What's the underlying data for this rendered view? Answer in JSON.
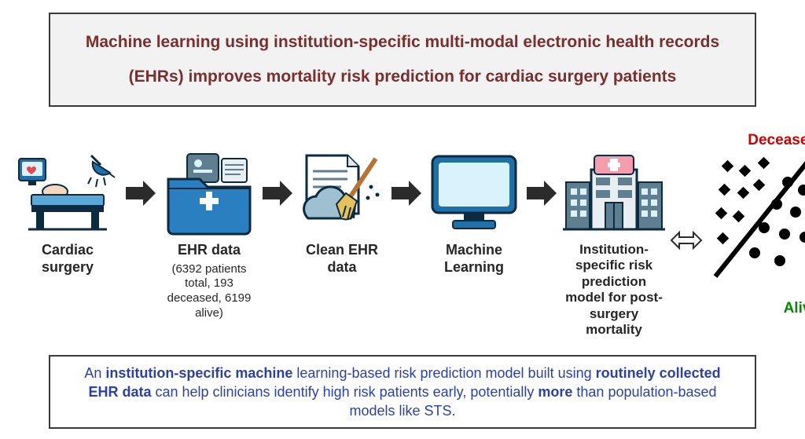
{
  "title": {
    "line1": "Machine learning using institution-specific multi-modal electronic health records",
    "line2": "(EHRs) improves mortality risk prediction for cardiac surgery patients",
    "color": "#7a2f2f",
    "bg": "#f2f2f2",
    "border": "#3a3a3a",
    "fontsize": 21
  },
  "pipeline": {
    "arrow_color": "#2b2b2b",
    "stages": [
      {
        "label": "Cardiac surgery",
        "sub": ""
      },
      {
        "label": "EHR data",
        "sub": "(6392 patients total, 193 deceased, 6199 alive)"
      },
      {
        "label": "Clean EHR data",
        "sub": ""
      },
      {
        "label": "Machine Learning",
        "sub": ""
      },
      {
        "label": "Institution-specific risk prediction model for post-surgery mortality",
        "sub": ""
      }
    ],
    "icon_colors": {
      "folder": "#2a7fc1",
      "folder_inner": "#ffffff",
      "monitor": "#1f6fa8",
      "monitor_screen": "#d9f2fb",
      "hospital_bldg": "#5f7e8f",
      "hospital_cross_bg": "#f59dae",
      "table_top": "#5aa8d6",
      "paper": "#ffffff",
      "cloud": "#9fc0d1",
      "broom_handle": "#b87333",
      "broom_head": "#e6c15a"
    }
  },
  "outcome": {
    "deceased_label": "Deceased",
    "alive_label": "Alive",
    "deceased_color": "#d10000",
    "alive_color": "#008a00",
    "line_color": "#000000",
    "n_diamonds": 9,
    "n_circles": 9
  },
  "bottom": {
    "text_html": "An <b>institution-specific machine</b> learning-based risk prediction model built using <b>routinely collected EHR data</b> can help clinicians identify high risk patients early, potentially <b>more</b> than population-based models like STS.",
    "color": "#2b3fae",
    "border": "#3a3a3a",
    "fontsize": 18
  }
}
